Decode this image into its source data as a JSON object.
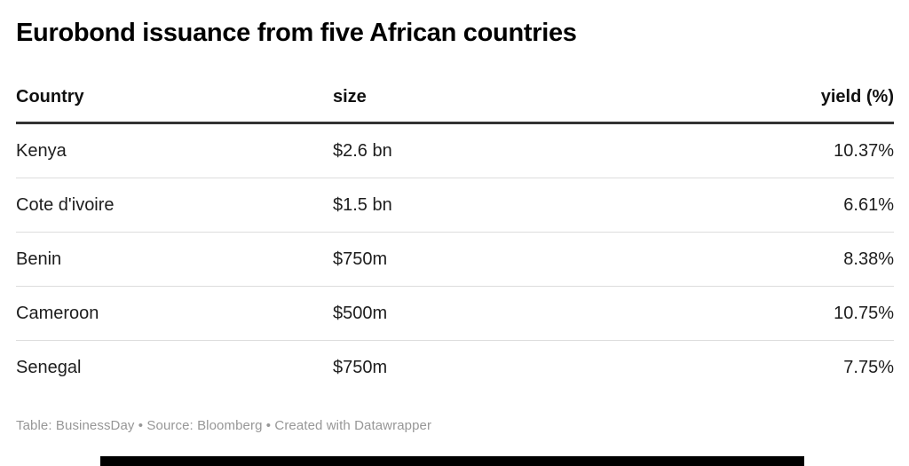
{
  "title": "Eurobond issuance from five African countries",
  "table": {
    "columns": {
      "country": "Country",
      "size": "size",
      "yield": "yield (%)"
    },
    "rows": [
      {
        "country": "Kenya",
        "size": "$2.6 bn",
        "yield": "10.37%"
      },
      {
        "country": "Cote d'ivoire",
        "size": "$1.5 bn",
        "yield": "6.61%"
      },
      {
        "country": "Benin",
        "size": "$750m",
        "yield": "8.38%"
      },
      {
        "country": "Cameroon",
        "size": "$500m",
        "yield": "10.75%"
      },
      {
        "country": "Senegal",
        "size": "$750m",
        "yield": "7.75%"
      }
    ]
  },
  "footer": {
    "attribution": "Table: BusinessDay • Source: Bloomberg • Created with Datawrapper"
  },
  "colors": {
    "title_text": "#000000",
    "body_text": "#1d1d1d",
    "header_border": "#333333",
    "row_divider": "#dddddd",
    "footer_text": "#979797",
    "bottom_bar": "#000000"
  },
  "chart_data": {
    "type": "table",
    "title": "Eurobond issuance from five African countries",
    "columns": [
      "Country",
      "size",
      "yield (%)"
    ],
    "rows": [
      [
        "Kenya",
        "$2.6 bn",
        "10.37%"
      ],
      [
        "Cote d'ivoire",
        "$1.5 bn",
        "6.61%"
      ],
      [
        "Benin",
        "$750m",
        "8.38%"
      ],
      [
        "Cameroon",
        "$500m",
        "10.75%"
      ],
      [
        "Senegal",
        "$750m",
        "7.75%"
      ]
    ],
    "size_usd_millions": [
      2600,
      1500,
      750,
      500,
      750
    ],
    "yield_percent": [
      10.37,
      6.61,
      8.38,
      10.75,
      7.75
    ]
  }
}
